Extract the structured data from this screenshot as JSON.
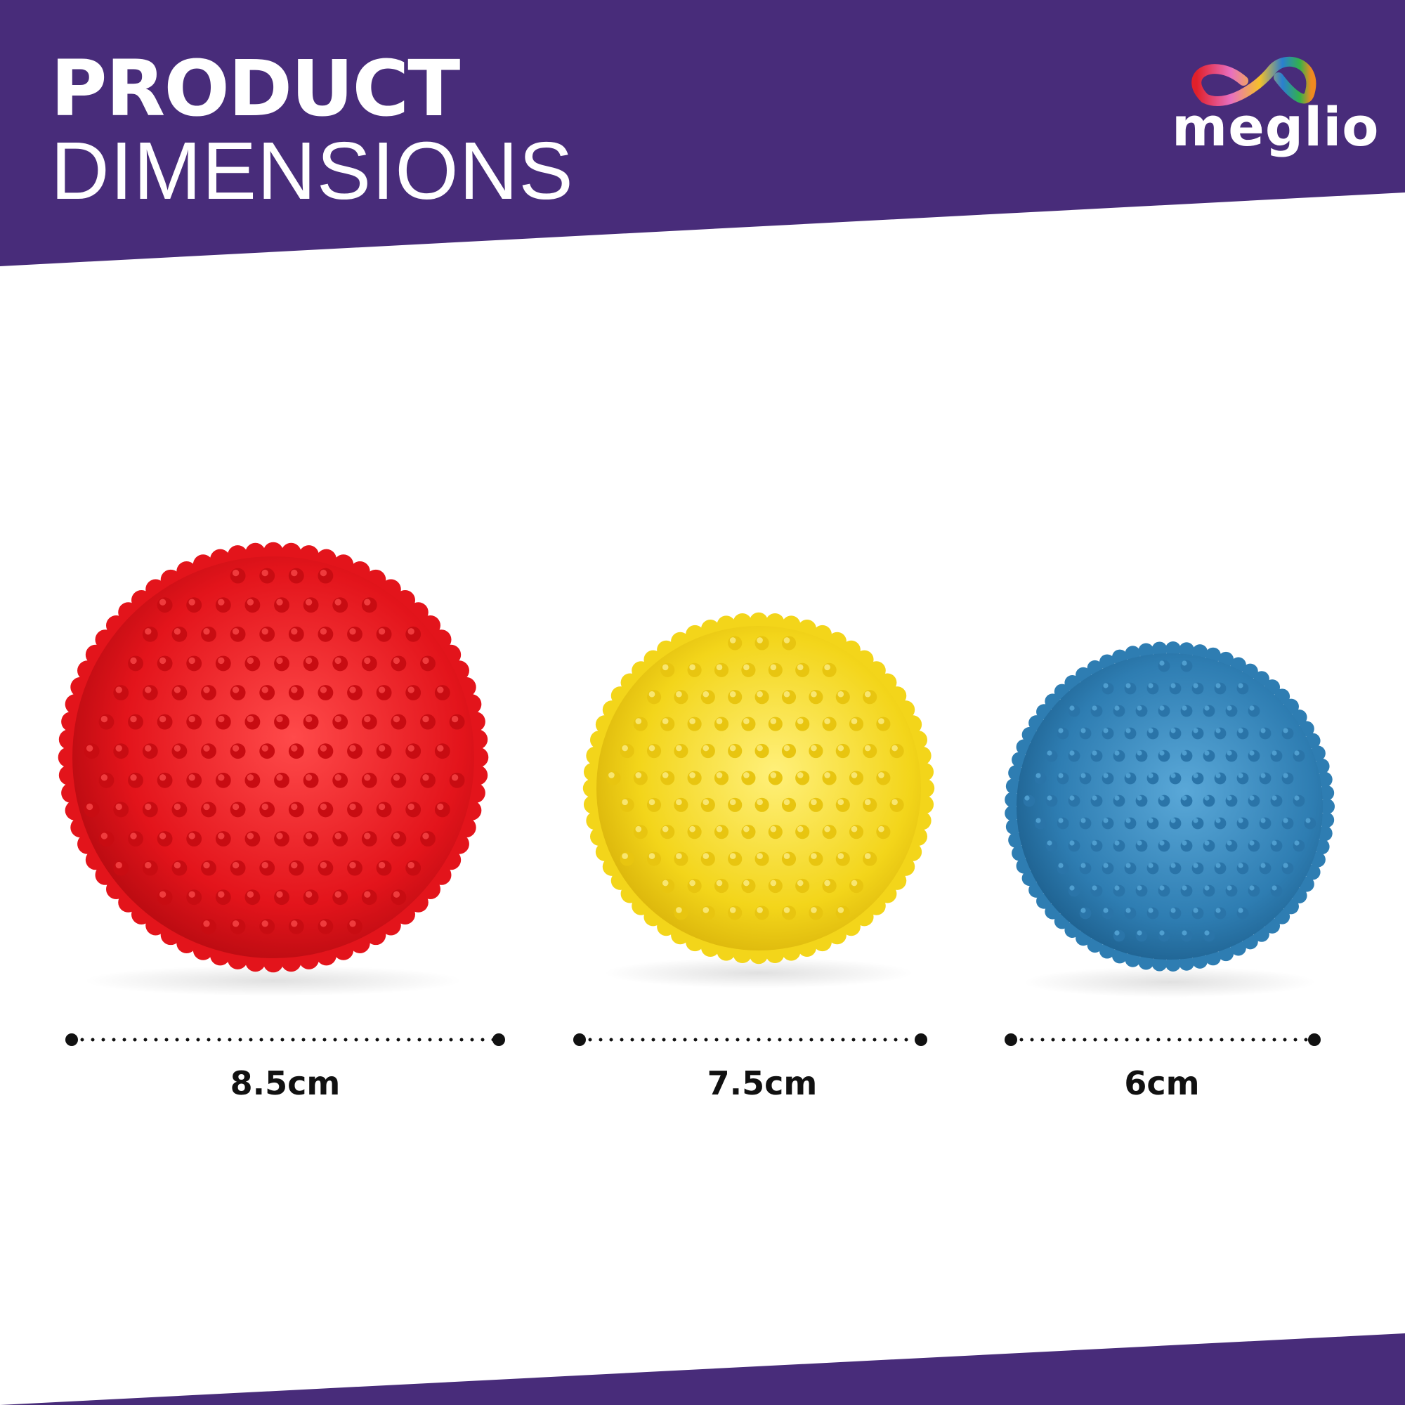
{
  "header": {
    "title_line1": "PRODUCT",
    "title_line2": "DIMENSIONS"
  },
  "brand": {
    "name": "meglio",
    "logo_icon": "rainbow-infinity-loop-icon"
  },
  "colors": {
    "band": "#482C7A",
    "red_ball": "#E3141B",
    "yellow_ball": "#F3D51A",
    "blue_ball": "#2E7DB2"
  },
  "products": [
    {
      "color": "red",
      "size_label": "8.5cm"
    },
    {
      "color": "yellow",
      "size_label": "7.5cm"
    },
    {
      "color": "blue",
      "size_label": "6cm"
    }
  ]
}
